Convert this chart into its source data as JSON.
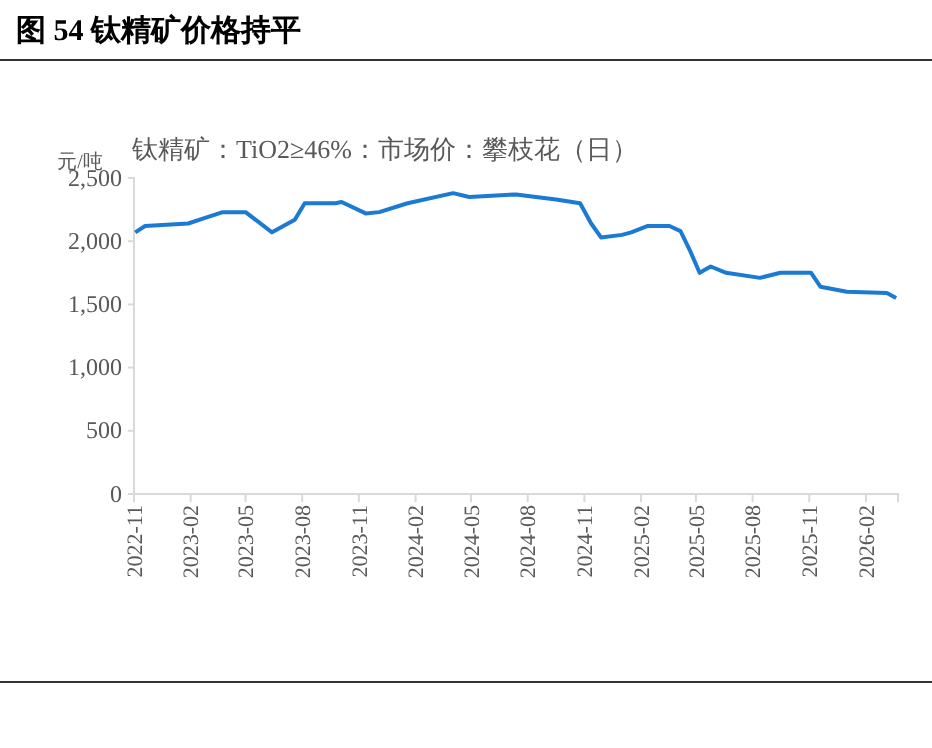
{
  "chart_data": {
    "type": "line",
    "title": "图 54  钛精矿价格持平",
    "subtitle": "钛精矿：TiO2≥46%：市场价：攀枝花（日）",
    "ylabel": "元/吨",
    "x": [
      "2022-11-03",
      "2022-11-19",
      "2023-01-28",
      "2023-02-22",
      "2023-03-25",
      "2023-05-01",
      "2023-06-13",
      "2023-07-20",
      "2023-08-05",
      "2023-09-24",
      "2023-10-04",
      "2023-11-12",
      "2023-12-04",
      "2024-01-19",
      "2024-04-02",
      "2024-04-28",
      "2024-07-13",
      "2024-09-16",
      "2024-10-25",
      "2024-11-12",
      "2024-11-28",
      "2025-01-01",
      "2025-01-16",
      "2025-02-11",
      "2025-03-19",
      "2025-04-06",
      "2025-04-21",
      "2025-05-07",
      "2025-05-25",
      "2025-06-19",
      "2025-08-13",
      "2025-09-15",
      "2025-11-04",
      "2025-11-19",
      "2026-01-01",
      "2026-03-07",
      "2026-03-22"
    ],
    "series": [
      {
        "color": "#1a7ad4",
        "values": [
          2070,
          2120,
          2140,
          2180,
          2230,
          2230,
          2070,
          2170,
          2300,
          2300,
          2310,
          2220,
          2230,
          2300,
          2380,
          2350,
          2370,
          2330,
          2300,
          2140,
          2030,
          2050,
          2070,
          2120,
          2120,
          2080,
          1930,
          1750,
          1800,
          1750,
          1710,
          1750,
          1750,
          1640,
          1600,
          1590,
          1550
        ]
      }
    ],
    "xlim": [
      "2022-11-01",
      "2026-03-25"
    ],
    "xticks": [
      {
        "value": "2022-11-01",
        "label": "2022-11"
      },
      {
        "value": "2023-02-01",
        "label": "2023-02"
      },
      {
        "value": "2023-05-01",
        "label": "2023-05"
      },
      {
        "value": "2023-08-01",
        "label": "2023-08"
      },
      {
        "value": "2023-11-01",
        "label": "2023-11"
      },
      {
        "value": "2024-02-01",
        "label": "2024-02"
      },
      {
        "value": "2024-05-01",
        "label": "2024-05"
      },
      {
        "value": "2024-08-01",
        "label": "2024-08"
      },
      {
        "value": "2024-11-01",
        "label": "2024-11"
      },
      {
        "value": "2025-02-01",
        "label": "2025-02"
      },
      {
        "value": "2025-05-01",
        "label": "2025-05"
      },
      {
        "value": "2025-08-01",
        "label": "2025-08"
      },
      {
        "value": "2025-11-01",
        "label": "2025-11"
      },
      {
        "value": "2026-02-01",
        "label": "2026-02"
      }
    ],
    "ylim": [
      0,
      2500
    ],
    "yticks": [
      {
        "value": 0,
        "label": "0"
      },
      {
        "value": 500,
        "label": "500"
      },
      {
        "value": 1000,
        "label": "1,000"
      },
      {
        "value": 1500,
        "label": "1,500"
      },
      {
        "value": 2000,
        "label": "2,000"
      },
      {
        "value": 2500,
        "label": "2,500"
      }
    ],
    "grid": false
  }
}
